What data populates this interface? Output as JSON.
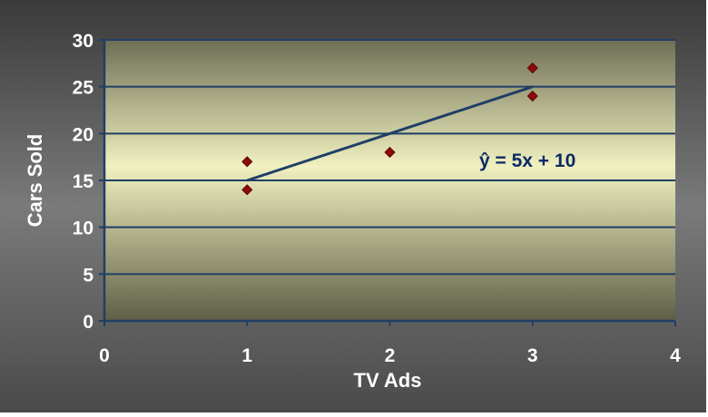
{
  "chart_data": {
    "type": "scatter",
    "title": "",
    "xlabel": "TV Ads",
    "ylabel": "Cars Sold",
    "xlim": [
      0,
      4
    ],
    "ylim": [
      0,
      30
    ],
    "x_ticks": [
      "0",
      "1",
      "2",
      "3",
      "4"
    ],
    "y_ticks": [
      "0",
      "5",
      "10",
      "15",
      "20",
      "25",
      "30"
    ],
    "grid": "horizontal",
    "legend": "none",
    "points": [
      {
        "x": 1,
        "y": 14
      },
      {
        "x": 1,
        "y": 17
      },
      {
        "x": 2,
        "y": 18
      },
      {
        "x": 3,
        "y": 24
      },
      {
        "x": 3,
        "y": 27
      }
    ],
    "regression_line": {
      "x": [
        1,
        3
      ],
      "y": [
        15,
        25
      ]
    },
    "annotation": "ŷ = 5x + 10",
    "colors": {
      "point": "#8b0a0a",
      "line": "#1f3f66",
      "gridline": "#1f3f66",
      "axis_text": "#ffffff",
      "annotation_text": "#0d2a66"
    }
  }
}
